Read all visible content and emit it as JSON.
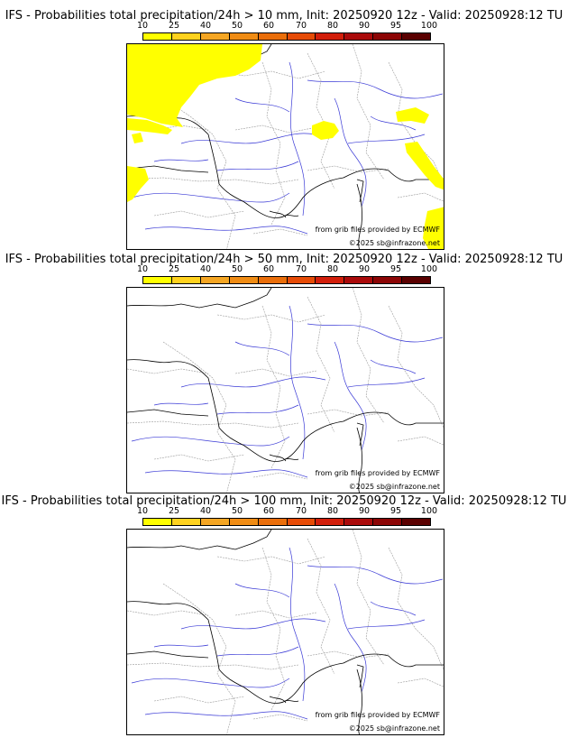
{
  "colorbar": {
    "labels": [
      "10",
      "25",
      "40",
      "50",
      "60",
      "70",
      "80",
      "90",
      "95",
      "100"
    ],
    "colors": [
      "#ffff00",
      "#ffd21e",
      "#f5a623",
      "#f08c14",
      "#ea6e0a",
      "#e64b06",
      "#d21e0a",
      "#aa0a0a",
      "#8c0505",
      "#5a0000"
    ]
  },
  "credits": {
    "source": "from grib files provided by ECMWF",
    "copyright": "©2025 sb@infrazone.net"
  },
  "panels": [
    {
      "title": "IFS - Probabilities total precipitation/24h > 10 mm, Init: 20250920 12z - Valid: 20250928:12 TU",
      "threshold_mm": 10,
      "has_precip_areas": true,
      "precip_color": "#ffff00"
    },
    {
      "title": "IFS - Probabilities total precipitation/24h > 50 mm, Init: 20250920 12z - Valid: 20250928:12 TU",
      "threshold_mm": 50,
      "has_precip_areas": false
    },
    {
      "title": "IFS - Probabilities total precipitation/24h > 100 mm, Init: 20250920 12z - Valid: 20250928:12 TU",
      "threshold_mm": 100,
      "has_precip_areas": false
    }
  ]
}
